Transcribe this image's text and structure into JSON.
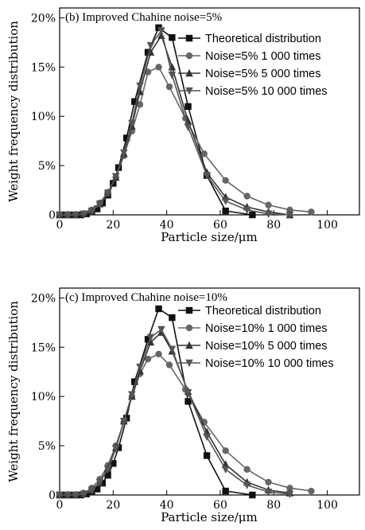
{
  "chart_data": [
    {
      "type": "line",
      "title": "(b) Improved Chahine noise=5%",
      "xlabel": "Particle size/μm",
      "ylabel": "Weight frequency distribution",
      "xlim": [
        0,
        112
      ],
      "ylim": [
        0,
        21
      ],
      "xticks": [
        0,
        20,
        40,
        60,
        80,
        100
      ],
      "xtick_labels": [
        "0",
        "20",
        "40",
        "60",
        "80",
        "100"
      ],
      "yticks": [
        0,
        5,
        10,
        15,
        20
      ],
      "ytick_labels": [
        "0",
        "5%",
        "10%",
        "15%",
        "20%"
      ],
      "legend_position": "top-right",
      "series": [
        {
          "name": "Theoretical distribution",
          "color": "#111111",
          "marker": "square",
          "points": [
            [
              0,
              0
            ],
            [
              2,
              0
            ],
            [
              4,
              0
            ],
            [
              6,
              0
            ],
            [
              8,
              0
            ],
            [
              10,
              0.1
            ],
            [
              12,
              0.3
            ],
            [
              14,
              0.6
            ],
            [
              16,
              1.2
            ],
            [
              18,
              2.0
            ],
            [
              20,
              3.2
            ],
            [
              22,
              4.8
            ],
            [
              25,
              7.8
            ],
            [
              28,
              11.5
            ],
            [
              33,
              16.5
            ],
            [
              37,
              19.0
            ],
            [
              42,
              18.0
            ],
            [
              48,
              11.0
            ],
            [
              55,
              4.0
            ],
            [
              62,
              0.4
            ],
            [
              72,
              0
            ]
          ]
        },
        {
          "name": "Noise=5% 1 000 times",
          "color": "#666666",
          "marker": "circle",
          "points": [
            [
              0,
              0
            ],
            [
              3,
              0
            ],
            [
              6,
              0
            ],
            [
              9,
              0.1
            ],
            [
              12,
              0.5
            ],
            [
              15,
              1.2
            ],
            [
              18,
              2.3
            ],
            [
              21,
              3.8
            ],
            [
              24,
              6.0
            ],
            [
              27,
              8.5
            ],
            [
              30,
              11.2
            ],
            [
              33,
              14.5
            ],
            [
              37,
              15.0
            ],
            [
              41,
              13.0
            ],
            [
              47,
              9.8
            ],
            [
              54,
              6.2
            ],
            [
              62,
              3.5
            ],
            [
              70,
              1.9
            ],
            [
              78,
              1.0
            ],
            [
              86,
              0.5
            ],
            [
              94,
              0.3
            ]
          ]
        },
        {
          "name": "Noise=5% 5 000 times",
          "color": "#333333",
          "marker": "triangle-up",
          "points": [
            [
              0,
              0
            ],
            [
              3,
              0
            ],
            [
              6,
              0
            ],
            [
              9,
              0.1
            ],
            [
              12,
              0.4
            ],
            [
              15,
              1.1
            ],
            [
              18,
              2.2
            ],
            [
              21,
              3.8
            ],
            [
              24,
              6.2
            ],
            [
              27,
              9.0
            ],
            [
              30,
              12.5
            ],
            [
              34,
              16.5
            ],
            [
              38,
              18.2
            ],
            [
              42,
              15.0
            ],
            [
              48,
              9.5
            ],
            [
              55,
              4.3
            ],
            [
              62,
              1.8
            ],
            [
              70,
              0.8
            ],
            [
              78,
              0.3
            ],
            [
              86,
              0
            ]
          ]
        },
        {
          "name": "Noise=5% 10 000 times",
          "color": "#555555",
          "marker": "triangle-down",
          "points": [
            [
              0,
              0
            ],
            [
              3,
              0
            ],
            [
              6,
              0
            ],
            [
              9,
              0.1
            ],
            [
              12,
              0.4
            ],
            [
              15,
              1.1
            ],
            [
              18,
              2.2
            ],
            [
              21,
              3.9
            ],
            [
              24,
              6.3
            ],
            [
              27,
              9.3
            ],
            [
              30,
              13.1
            ],
            [
              34,
              17.2
            ],
            [
              38,
              18.7
            ],
            [
              42,
              14.2
            ],
            [
              48,
              8.9
            ],
            [
              55,
              4.0
            ],
            [
              62,
              1.4
            ],
            [
              70,
              0.5
            ],
            [
              78,
              0.1
            ],
            [
              86,
              0
            ]
          ]
        }
      ]
    },
    {
      "type": "line",
      "title": "(c) Improved Chahine noise=10%",
      "xlabel": "Particle size/μm",
      "ylabel": "Weight frequency distribution",
      "xlim": [
        0,
        112
      ],
      "ylim": [
        0,
        21
      ],
      "xticks": [
        0,
        20,
        40,
        60,
        80,
        100
      ],
      "xtick_labels": [
        "0",
        "20",
        "40",
        "60",
        "80",
        "100"
      ],
      "yticks": [
        0,
        5,
        10,
        15,
        20
      ],
      "ytick_labels": [
        "0",
        "5%",
        "10%",
        "15%",
        "20%"
      ],
      "legend_position": "top-right",
      "series": [
        {
          "name": "Theoretical distribution",
          "color": "#111111",
          "marker": "square",
          "points": [
            [
              0,
              0
            ],
            [
              2,
              0
            ],
            [
              4,
              0
            ],
            [
              6,
              0
            ],
            [
              8,
              0
            ],
            [
              10,
              0.1
            ],
            [
              12,
              0.3
            ],
            [
              14,
              0.6
            ],
            [
              16,
              1.2
            ],
            [
              18,
              2.0
            ],
            [
              20,
              3.2
            ],
            [
              22,
              4.8
            ],
            [
              25,
              7.8
            ],
            [
              28,
              11.5
            ],
            [
              33,
              15.8
            ],
            [
              37,
              18.9
            ],
            [
              42,
              18.0
            ],
            [
              48,
              9.5
            ],
            [
              55,
              4.0
            ],
            [
              62,
              0.4
            ],
            [
              72,
              0
            ]
          ]
        },
        {
          "name": "Noise=10% 1 000 times",
          "color": "#666666",
          "marker": "circle",
          "points": [
            [
              0,
              0
            ],
            [
              3,
              0
            ],
            [
              6,
              0
            ],
            [
              9,
              0.2
            ],
            [
              12,
              0.7
            ],
            [
              15,
              1.6
            ],
            [
              18,
              3.0
            ],
            [
              21,
              5.0
            ],
            [
              24,
              7.4
            ],
            [
              27,
              10.0
            ],
            [
              30,
              12.3
            ],
            [
              33,
              13.8
            ],
            [
              37,
              14.3
            ],
            [
              41,
              13.2
            ],
            [
              47,
              10.7
            ],
            [
              54,
              7.4
            ],
            [
              62,
              4.5
            ],
            [
              70,
              2.6
            ],
            [
              78,
              1.3
            ],
            [
              86,
              0.7
            ],
            [
              94,
              0.4
            ]
          ]
        },
        {
          "name": "Noise=10% 5 000 times",
          "color": "#333333",
          "marker": "triangle-up",
          "points": [
            [
              0,
              0
            ],
            [
              3,
              0
            ],
            [
              6,
              0
            ],
            [
              9,
              0.1
            ],
            [
              12,
              0.5
            ],
            [
              15,
              1.3
            ],
            [
              18,
              2.7
            ],
            [
              21,
              4.8
            ],
            [
              24,
              7.5
            ],
            [
              27,
              10.0
            ],
            [
              30,
              12.6
            ],
            [
              34,
              15.5
            ],
            [
              38,
              16.5
            ],
            [
              42,
              14.6
            ],
            [
              48,
              10.5
            ],
            [
              55,
              6.4
            ],
            [
              62,
              3.1
            ],
            [
              70,
              1.3
            ],
            [
              78,
              0.5
            ],
            [
              86,
              0.2
            ]
          ]
        },
        {
          "name": "Noise=10% 10 000 times",
          "color": "#555555",
          "marker": "triangle-down",
          "points": [
            [
              0,
              0
            ],
            [
              3,
              0
            ],
            [
              6,
              0
            ],
            [
              9,
              0.1
            ],
            [
              12,
              0.5
            ],
            [
              15,
              1.3
            ],
            [
              18,
              2.6
            ],
            [
              21,
              4.7
            ],
            [
              24,
              7.5
            ],
            [
              27,
              10.2
            ],
            [
              30,
              13.0
            ],
            [
              34,
              16.0
            ],
            [
              38,
              16.8
            ],
            [
              42,
              14.8
            ],
            [
              48,
              10.4
            ],
            [
              55,
              5.9
            ],
            [
              62,
              2.6
            ],
            [
              70,
              1.0
            ],
            [
              78,
              0.3
            ],
            [
              86,
              0.1
            ]
          ]
        }
      ]
    }
  ]
}
